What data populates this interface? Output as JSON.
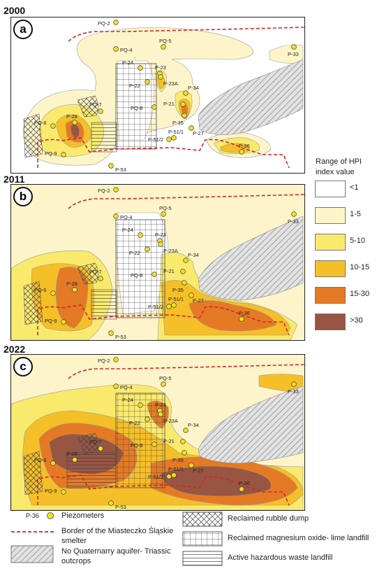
{
  "panels": [
    {
      "year": "2000",
      "letter": "a"
    },
    {
      "year": "2011",
      "letter": "b"
    },
    {
      "year": "2022",
      "letter": "c"
    }
  ],
  "piezometers": [
    "PQ-2",
    "PQ-4",
    "PQ-5",
    "P-33",
    "P-24",
    "P-23",
    "P-22",
    "P-23A",
    "PQ-8",
    "P-34",
    "P-21",
    "P-35",
    "P-27",
    "P-28",
    "PQ-7",
    "PQ-6",
    "P-51/1",
    "P-51/2",
    "PQ-9",
    "P-36",
    "P-53"
  ],
  "hpi_legend": {
    "title": "Range of HPI index value",
    "classes": [
      {
        "label": "<1",
        "color": "#ffffff"
      },
      {
        "label": "1-5",
        "color": "#fdf5c9"
      },
      {
        "label": "5-10",
        "color": "#f9ea6e"
      },
      {
        "label": "10-15",
        "color": "#f5bf27"
      },
      {
        "label": "15-30",
        "color": "#e47a25"
      },
      {
        "label": ">30",
        "color": "#985543"
      }
    ]
  },
  "bottom_legend": {
    "piezometer_sample": "P-36",
    "piezometers": "Piezometers",
    "border": "Border of the Miasteczko Śląskie smelter",
    "no_aquifer": "No Quaternarry aquifer- Triassic outcrops",
    "rubble": "Reclaimed rubble dump",
    "magnesium": "Reclaimed magnesium oxide- lime landfill",
    "hazardous": "Active hazardous waste landfill"
  }
}
